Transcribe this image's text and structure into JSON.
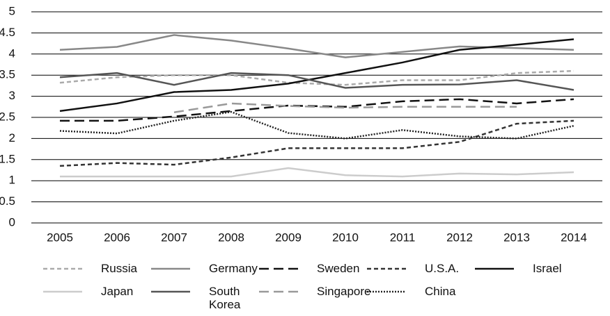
{
  "chart_data": {
    "type": "line",
    "categories": [
      "2005",
      "2006",
      "2007",
      "2008",
      "2009",
      "2010",
      "2011",
      "2012",
      "2013",
      "2014"
    ],
    "ylim": [
      0,
      5
    ],
    "yticks": [
      0,
      0.5,
      1,
      1.5,
      2,
      2.5,
      3,
      3.5,
      4,
      4.5,
      5
    ],
    "grid": true,
    "legend": "bottom",
    "series": [
      {
        "name": "Russia",
        "color": "#aaaaaa",
        "dash": "dash",
        "values": [
          3.32,
          3.45,
          3.5,
          3.5,
          3.32,
          3.27,
          3.38,
          3.38,
          3.55,
          3.6
        ]
      },
      {
        "name": "Germany",
        "color": "#888888",
        "dash": "solid",
        "values": [
          4.1,
          4.17,
          4.45,
          4.32,
          4.13,
          3.92,
          4.05,
          4.18,
          4.14,
          4.1
        ]
      },
      {
        "name": "Sweden",
        "color": "#111111",
        "dash": "longdash",
        "values": [
          2.42,
          2.42,
          2.52,
          2.65,
          2.78,
          2.75,
          2.88,
          2.93,
          2.83,
          2.93
        ]
      },
      {
        "name": "U.S.A.",
        "color": "#333333",
        "dash": "dash",
        "values": [
          1.35,
          1.42,
          1.38,
          1.55,
          1.77,
          1.77,
          1.77,
          1.92,
          2.35,
          2.42
        ]
      },
      {
        "name": "Israel",
        "color": "#111111",
        "dash": "solid",
        "values": [
          2.65,
          2.83,
          3.1,
          3.15,
          3.3,
          3.55,
          3.8,
          4.1,
          4.22,
          4.35
        ]
      },
      {
        "name": "Japan",
        "color": "#cccccc",
        "dash": "solid",
        "values": [
          1.1,
          1.1,
          1.1,
          1.1,
          1.3,
          1.13,
          1.1,
          1.17,
          1.15,
          1.2
        ]
      },
      {
        "name": "South Korea",
        "color": "#555555",
        "dash": "solid",
        "values": [
          3.45,
          3.55,
          3.27,
          3.55,
          3.5,
          3.2,
          3.27,
          3.28,
          3.38,
          3.15
        ]
      },
      {
        "name": "Singapore",
        "color": "#999999",
        "dash": "longdash",
        "values": [
          null,
          null,
          2.62,
          2.83,
          2.77,
          2.73,
          2.75,
          2.75,
          2.75,
          null
        ]
      },
      {
        "name": "China",
        "color": "#222222",
        "dash": "dot",
        "values": [
          2.18,
          2.12,
          2.42,
          2.63,
          2.13,
          2.0,
          2.2,
          2.05,
          2.0,
          2.3
        ]
      }
    ]
  }
}
